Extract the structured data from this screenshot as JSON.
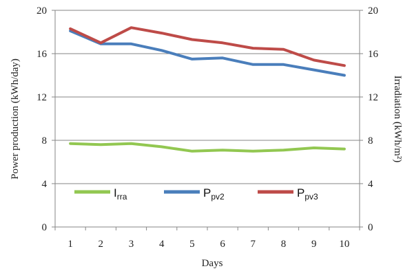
{
  "chart_data": {
    "type": "line",
    "x": [
      1,
      2,
      3,
      4,
      5,
      6,
      7,
      8,
      9,
      10
    ],
    "xlabel": "Days",
    "ylabel_left": "Power production (kWh/day)",
    "ylabel_right": "Irradiation (kWh/m²)",
    "ylim_left": [
      0,
      20
    ],
    "ylim_right": [
      0,
      20
    ],
    "yticks": [
      0,
      4,
      8,
      12,
      16,
      20
    ],
    "xticks": [
      1,
      2,
      3,
      4,
      5,
      6,
      7,
      8,
      9,
      10
    ],
    "grid": "horizontal",
    "legend": "inside, lower-middle",
    "series": [
      {
        "name_main": "I",
        "name_sub": "rra",
        "axis": "right",
        "color": "#92c751",
        "values": [
          7.7,
          7.6,
          7.7,
          7.4,
          7.0,
          7.1,
          7.0,
          7.1,
          7.3,
          7.2
        ]
      },
      {
        "name_main": "P",
        "name_sub": "pv2",
        "axis": "left",
        "color": "#4a7ebb",
        "values": [
          18.1,
          16.9,
          16.9,
          16.3,
          15.5,
          15.6,
          15.0,
          15.0,
          14.5,
          14.0
        ]
      },
      {
        "name_main": "P",
        "name_sub": "pv3",
        "axis": "left",
        "color": "#be4b48",
        "values": [
          18.3,
          17.0,
          18.4,
          17.9,
          17.3,
          17.0,
          16.5,
          16.4,
          15.4,
          14.9
        ]
      }
    ]
  }
}
